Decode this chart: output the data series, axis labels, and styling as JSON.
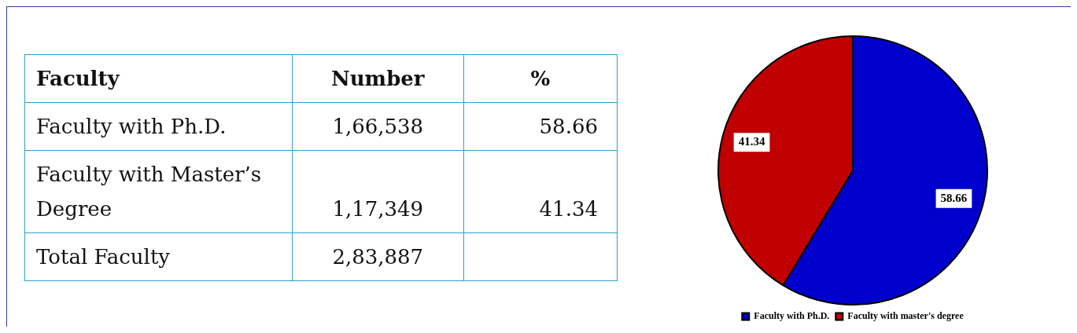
{
  "chart_data": [
    {
      "type": "other",
      "xlabel": "Faculty",
      "categories": [
        "Faculty with Ph.D.",
        "Faculty with Master’s Degree",
        "Total Faculty"
      ],
      "series": [
        {
          "name": "Number",
          "values": [
            166538,
            117349,
            283887
          ],
          "value_labels": [
            "1,66,538",
            "1,17,349",
            "2,83,887"
          ]
        },
        {
          "name": "%",
          "values": [
            58.66,
            41.34,
            null
          ]
        }
      ],
      "data_labels": true
    },
    {
      "type": "pie",
      "categories": [
        "Faculty with Ph.D.",
        "Faculty with master's degree"
      ],
      "values": [
        58.66,
        41.34
      ],
      "colors": [
        "#0000cc",
        "#c00000"
      ],
      "data_labels": true,
      "legend": "bottom"
    }
  ]
}
